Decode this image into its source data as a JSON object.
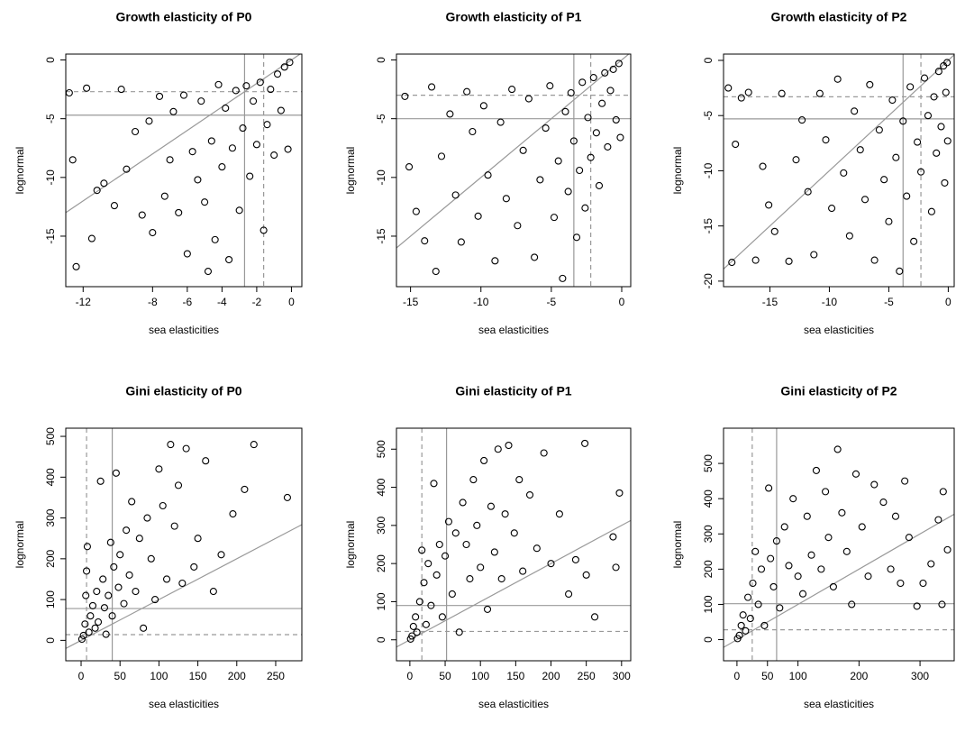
{
  "chart_data": [
    {
      "type": "scatter",
      "title": "Growth elasticity of P0",
      "x_label": "sea elasticities",
      "y_label": "lognormal",
      "color": "#000000",
      "line_color": "#999999",
      "xlim": [
        -13,
        0.6
      ],
      "ylim": [
        -19.3,
        0.5
      ],
      "xticks": [
        -12,
        -8,
        -6,
        -4,
        -2,
        0
      ],
      "yticks": [
        -15,
        -10,
        -5,
        0
      ],
      "vlines": [
        {
          "value": -2.7,
          "style": "solid"
        },
        {
          "value": -1.6,
          "style": "dashed"
        }
      ],
      "hlines": [
        {
          "value": -4.7,
          "style": "solid"
        },
        {
          "value": -2.7,
          "style": "dashed"
        }
      ],
      "abline": {
        "intercept": 0,
        "slope": 1
      },
      "x": [
        -12.8,
        -12.6,
        -12.4,
        -11.8,
        -11.5,
        -11.2,
        -10.8,
        -10.2,
        -9.8,
        -9.5,
        -9,
        -8.6,
        -8.2,
        -8,
        -7.6,
        -7.3,
        -7,
        -6.8,
        -6.5,
        -6.2,
        -6,
        -5.7,
        -5.4,
        -5.2,
        -5,
        -4.8,
        -4.6,
        -4.4,
        -4.2,
        -4,
        -3.8,
        -3.6,
        -3.4,
        -3.2,
        -3,
        -2.8,
        -2.6,
        -2.4,
        -2.2,
        -2,
        -1.8,
        -1.6,
        -1.4,
        -1.2,
        -1,
        -0.8,
        -0.6,
        -0.4,
        -0.2,
        -0.1
      ],
      "values": [
        -2.8,
        -8.5,
        -17.6,
        -2.4,
        -15.2,
        -11.1,
        -10.5,
        -12.4,
        -2.5,
        -9.3,
        -6.1,
        -13.2,
        -5.2,
        -14.7,
        -3.1,
        -11.6,
        -8.5,
        -4.4,
        -13,
        -3,
        -16.5,
        -7.8,
        -10.2,
        -3.5,
        -12.1,
        -18,
        -6.9,
        -15.3,
        -2.1,
        -9.1,
        -4.1,
        -17,
        -7.5,
        -2.6,
        -12.8,
        -5.8,
        -2.2,
        -9.9,
        -3.5,
        -7.2,
        -1.9,
        -14.5,
        -5.5,
        -2.5,
        -8.1,
        -1.2,
        -4.3,
        -0.6,
        -7.6,
        -0.2
      ]
    },
    {
      "type": "scatter",
      "title": "Growth elasticity of P1",
      "x_label": "sea elasticities",
      "y_label": "lognormal",
      "color": "#000000",
      "line_color": "#999999",
      "xlim": [
        -16,
        0.64
      ],
      "ylim": [
        -19.3,
        0.5
      ],
      "xticks": [
        -15,
        -10,
        -5,
        0
      ],
      "yticks": [
        -15,
        -10,
        -5,
        0
      ],
      "vlines": [
        {
          "value": -3.4,
          "style": "solid"
        },
        {
          "value": -2.2,
          "style": "dashed"
        }
      ],
      "hlines": [
        {
          "value": -5,
          "style": "solid"
        },
        {
          "value": -3,
          "style": "dashed"
        }
      ],
      "abline": {
        "intercept": 0,
        "slope": 1
      },
      "x": [
        -15.4,
        -15.1,
        -14.6,
        -14,
        -13.5,
        -13.2,
        -12.8,
        -12.2,
        -11.8,
        -11.4,
        -11,
        -10.6,
        -10.2,
        -9.8,
        -9.5,
        -9,
        -8.6,
        -8.2,
        -7.8,
        -7.4,
        -7,
        -6.6,
        -6.2,
        -5.8,
        -5.4,
        -5.1,
        -4.8,
        -4.5,
        -4.2,
        -4,
        -3.8,
        -3.6,
        -3.4,
        -3.2,
        -3,
        -2.8,
        -2.6,
        -2.4,
        -2.2,
        -2,
        -1.8,
        -1.6,
        -1.4,
        -1.2,
        -1,
        -0.8,
        -0.6,
        -0.4,
        -0.2,
        -0.1
      ],
      "values": [
        -3.1,
        -9.1,
        -12.9,
        -15.4,
        -2.3,
        -18,
        -8.2,
        -4.6,
        -11.5,
        -15.5,
        -2.7,
        -6.1,
        -13.3,
        -3.9,
        -9.8,
        -17.1,
        -5.3,
        -11.8,
        -2.5,
        -14.1,
        -7.7,
        -3.3,
        -16.8,
        -10.2,
        -5.8,
        -2.2,
        -13.4,
        -8.6,
        -18.6,
        -4.4,
        -11.2,
        -2.8,
        -6.9,
        -15.1,
        -9.4,
        -1.9,
        -12.6,
        -4.9,
        -8.3,
        -1.5,
        -6.2,
        -10.7,
        -3.7,
        -1.1,
        -7.4,
        -2.6,
        -0.8,
        -5.1,
        -0.3,
        -6.6
      ]
    },
    {
      "type": "scatter",
      "title": "Growth elasticity of P2",
      "x_label": "sea elasticities",
      "y_label": "lognormal",
      "color": "#000000",
      "line_color": "#999999",
      "xlim": [
        -18.9,
        0.5
      ],
      "ylim": [
        -20.5,
        0.57
      ],
      "xticks": [
        -15,
        -10,
        -5,
        0
      ],
      "yticks": [
        -20,
        -15,
        -10,
        -5,
        0
      ],
      "vlines": [
        {
          "value": -3.8,
          "style": "solid"
        },
        {
          "value": -2.3,
          "style": "dashed"
        }
      ],
      "hlines": [
        {
          "value": -5.3,
          "style": "solid"
        },
        {
          "value": -3.3,
          "style": "dashed"
        }
      ],
      "abline": {
        "intercept": 0,
        "slope": 1
      },
      "x": [
        -18.5,
        -18.2,
        -17.9,
        -17.4,
        -16.8,
        -16.2,
        -15.6,
        -15.1,
        -14.6,
        -14,
        -13.4,
        -12.8,
        -12.3,
        -11.8,
        -11.3,
        -10.8,
        -10.3,
        -9.8,
        -9.3,
        -8.8,
        -8.3,
        -7.9,
        -7.4,
        -7,
        -6.6,
        -6.2,
        -5.8,
        -5.4,
        -5,
        -4.7,
        -4.4,
        -4.1,
        -3.8,
        -3.5,
        -3.2,
        -2.9,
        -2.6,
        -2.3,
        -2,
        -1.7,
        -1.4,
        -1.2,
        -1,
        -0.8,
        -0.6,
        -0.4,
        -0.3,
        -0.2,
        -0.1,
        -0.05
      ],
      "values": [
        -2.5,
        -18.3,
        -7.6,
        -3.4,
        -2.9,
        -18.1,
        -9.6,
        -13.1,
        -15.5,
        -3,
        -18.2,
        -9,
        -5.4,
        -11.9,
        -17.6,
        -3,
        -7.2,
        -13.4,
        -1.7,
        -10.2,
        -15.9,
        -4.6,
        -8.1,
        -12.6,
        -2.2,
        -18.1,
        -6.3,
        -10.8,
        -14.6,
        -3.6,
        -8.8,
        -19.1,
        -5.5,
        -12.3,
        -2.4,
        -16.4,
        -7.4,
        -10.1,
        -1.6,
        -5,
        -13.7,
        -3.3,
        -8.4,
        -1,
        -6,
        -0.5,
        -11.1,
        -2.9,
        -0.2,
        -7.3
      ]
    },
    {
      "type": "scatter",
      "title": "Gini elasticity of P0",
      "x_label": "sea elasticities",
      "y_label": "lognormal",
      "color": "#000000",
      "line_color": "#999999",
      "xlim": [
        -19.7,
        283.6
      ],
      "ylim": [
        -50,
        520
      ],
      "xticks": [
        0,
        50,
        100,
        150,
        200,
        250
      ],
      "yticks": [
        0,
        100,
        200,
        300,
        400,
        500
      ],
      "vlines": [
        {
          "value": 40,
          "style": "solid"
        },
        {
          "value": 7,
          "style": "dashed"
        }
      ],
      "hlines": [
        {
          "value": 78,
          "style": "solid"
        },
        {
          "value": 14,
          "style": "dashed"
        }
      ],
      "abline": {
        "intercept": 0,
        "slope": 1
      },
      "x": [
        1,
        3,
        5,
        6,
        7,
        8,
        10,
        12,
        15,
        18,
        20,
        22,
        25,
        28,
        30,
        32,
        35,
        38,
        40,
        42,
        45,
        48,
        50,
        55,
        58,
        62,
        65,
        70,
        75,
        80,
        85,
        90,
        95,
        100,
        105,
        110,
        115,
        120,
        125,
        130,
        135,
        145,
        150,
        160,
        170,
        180,
        195,
        210,
        222,
        265
      ],
      "values": [
        3,
        12,
        40,
        110,
        170,
        230,
        20,
        60,
        85,
        30,
        120,
        45,
        390,
        150,
        80,
        15,
        110,
        240,
        60,
        180,
        410,
        130,
        210,
        90,
        270,
        160,
        340,
        120,
        250,
        30,
        300,
        200,
        100,
        420,
        330,
        150,
        480,
        280,
        380,
        140,
        470,
        180,
        250,
        440,
        120,
        210,
        310,
        370,
        480,
        350
      ]
    },
    {
      "type": "scatter",
      "title": "Gini elasticity of P1",
      "x_label": "sea elasticities",
      "y_label": "lognormal",
      "color": "#000000",
      "line_color": "#999999",
      "xlim": [
        -19,
        313
      ],
      "ylim": [
        -55,
        555
      ],
      "xticks": [
        0,
        50,
        100,
        150,
        200,
        250,
        300
      ],
      "yticks": [
        0,
        100,
        200,
        300,
        400,
        500
      ],
      "vlines": [
        {
          "value": 52,
          "style": "solid"
        },
        {
          "value": 17,
          "style": "dashed"
        }
      ],
      "hlines": [
        {
          "value": 90,
          "style": "solid"
        },
        {
          "value": 22,
          "style": "dashed"
        }
      ],
      "abline": {
        "intercept": 0,
        "slope": 1
      },
      "x": [
        1,
        3,
        5,
        8,
        10,
        14,
        17,
        20,
        23,
        26,
        30,
        34,
        38,
        42,
        46,
        50,
        55,
        60,
        65,
        70,
        75,
        80,
        85,
        90,
        95,
        100,
        105,
        110,
        115,
        120,
        125,
        130,
        135,
        140,
        148,
        155,
        160,
        170,
        180,
        190,
        200,
        212,
        225,
        235,
        248,
        250,
        262,
        288,
        292,
        297
      ],
      "values": [
        2,
        10,
        35,
        60,
        20,
        100,
        235,
        150,
        40,
        200,
        90,
        410,
        170,
        250,
        60,
        220,
        310,
        120,
        280,
        20,
        360,
        250,
        160,
        420,
        300,
        190,
        470,
        80,
        350,
        230,
        500,
        160,
        330,
        510,
        280,
        420,
        180,
        380,
        240,
        490,
        200,
        330,
        120,
        210,
        515,
        170,
        60,
        270,
        190,
        385
      ]
    },
    {
      "type": "scatter",
      "title": "Gini elasticity of P2",
      "x_label": "sea elasticities",
      "y_label": "lognormal",
      "color": "#000000",
      "line_color": "#999999",
      "xlim": [
        -22,
        356
      ],
      "ylim": [
        -60,
        600
      ],
      "xticks": [
        0,
        50,
        100,
        200,
        300
      ],
      "yticks": [
        0,
        100,
        200,
        300,
        400,
        500
      ],
      "vlines": [
        {
          "value": 65,
          "style": "solid"
        },
        {
          "value": 25,
          "style": "dashed"
        }
      ],
      "hlines": [
        {
          "value": 102,
          "style": "solid"
        },
        {
          "value": 28,
          "style": "dashed"
        }
      ],
      "abline": {
        "intercept": 0,
        "slope": 1
      },
      "x": [
        1,
        4,
        7,
        10,
        14,
        18,
        22,
        26,
        30,
        35,
        40,
        45,
        52,
        55,
        60,
        65,
        70,
        78,
        85,
        92,
        100,
        108,
        115,
        122,
        130,
        138,
        145,
        150,
        158,
        165,
        172,
        180,
        188,
        195,
        205,
        215,
        225,
        240,
        252,
        260,
        268,
        275,
        282,
        295,
        305,
        318,
        330,
        336,
        338,
        345
      ],
      "values": [
        3,
        12,
        40,
        70,
        25,
        120,
        60,
        160,
        250,
        100,
        200,
        40,
        430,
        230,
        150,
        280,
        90,
        320,
        210,
        400,
        180,
        130,
        350,
        240,
        480,
        200,
        420,
        290,
        150,
        540,
        360,
        250,
        100,
        470,
        320,
        180,
        440,
        390,
        200,
        350,
        160,
        450,
        290,
        95,
        160,
        215,
        340,
        100,
        420,
        255
      ]
    }
  ]
}
